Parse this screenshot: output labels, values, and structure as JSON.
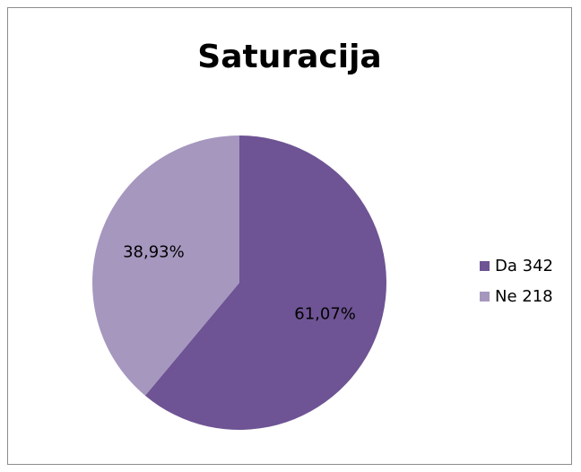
{
  "chart_data": {
    "type": "pie",
    "title": "Saturacija",
    "categories": [
      "Da 342",
      "Ne 218"
    ],
    "values": [
      342,
      218
    ],
    "percent_labels": [
      "61,07%",
      "38,93%"
    ],
    "colors": [
      "#6e5494",
      "#a697bf"
    ],
    "legend_position": "right",
    "start_angle_deg": 0,
    "direction": "clockwise"
  }
}
